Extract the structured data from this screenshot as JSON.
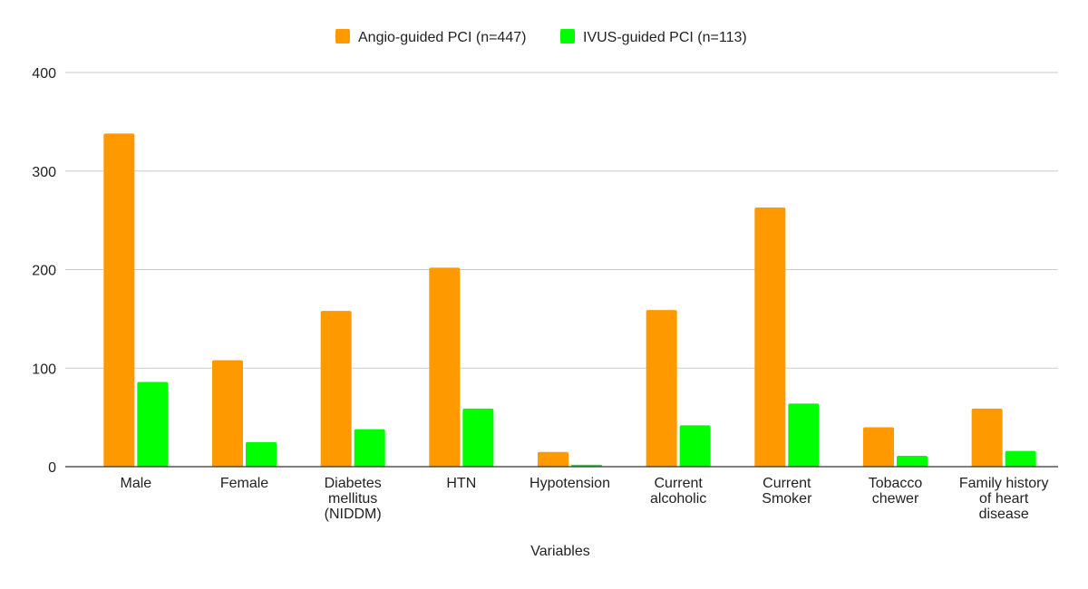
{
  "chart_data": {
    "type": "bar",
    "title": "",
    "xlabel": "Variables",
    "ylabel": "",
    "ylim": [
      0,
      400
    ],
    "yticks": [
      0,
      100,
      200,
      300,
      400
    ],
    "grid": true,
    "legend_position": "top",
    "categories": [
      "Male",
      "Female",
      "Diabetes mellitus (NIDDM)",
      "HTN",
      "Hypotension",
      "Current alcoholic",
      "Current Smoker",
      "Tobacco chewer",
      "Family history of heart disease"
    ],
    "category_lines": [
      [
        "Male"
      ],
      [
        "Female"
      ],
      [
        "Diabetes",
        "mellitus",
        "(NIDDM)"
      ],
      [
        "HTN"
      ],
      [
        "Hypotension"
      ],
      [
        "Current",
        "alcoholic"
      ],
      [
        "Current",
        "Smoker"
      ],
      [
        "Tobacco",
        "chewer"
      ],
      [
        "Family history",
        "of heart",
        "disease"
      ]
    ],
    "series": [
      {
        "name": "Angio-guided PCI (n=447)",
        "color": "#ff9900",
        "values": [
          338,
          108,
          158,
          202,
          15,
          159,
          263,
          40,
          59
        ]
      },
      {
        "name": "IVUS-guided PCI (n=113)",
        "color": "#00ff00",
        "values": [
          86,
          25,
          38,
          59,
          2,
          42,
          64,
          11,
          16
        ]
      }
    ]
  }
}
